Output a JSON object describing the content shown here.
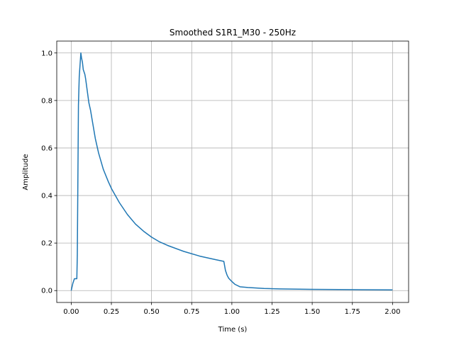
{
  "chart_data": {
    "type": "line",
    "title": "Smoothed S1R1_M30 - 250Hz",
    "xlabel": "Time (s)",
    "ylabel": "Amplitude",
    "xlim": [
      -0.09,
      2.1
    ],
    "ylim": [
      -0.05,
      1.05
    ],
    "grid": true,
    "xticks": [
      0.0,
      0.25,
      0.5,
      0.75,
      1.0,
      1.25,
      1.5,
      1.75,
      2.0
    ],
    "xtick_labels": [
      "0.00",
      "0.25",
      "0.50",
      "0.75",
      "1.00",
      "1.25",
      "1.50",
      "1.75",
      "2.00"
    ],
    "yticks": [
      0.0,
      0.2,
      0.4,
      0.6,
      0.8,
      1.0
    ],
    "ytick_labels": [
      "0.0",
      "0.2",
      "0.4",
      "0.6",
      "0.8",
      "1.0"
    ],
    "series": [
      {
        "color": "#1f77b4",
        "x": [
          0.0,
          0.01,
          0.02,
          0.028,
          0.035,
          0.038,
          0.045,
          0.05,
          0.055,
          0.06,
          0.064,
          0.07,
          0.075,
          0.08,
          0.085,
          0.09,
          0.1,
          0.11,
          0.12,
          0.13,
          0.15,
          0.17,
          0.2,
          0.23,
          0.25,
          0.3,
          0.35,
          0.4,
          0.45,
          0.5,
          0.55,
          0.6,
          0.7,
          0.8,
          0.9,
          0.95,
          0.96,
          0.97,
          0.98,
          1.0,
          1.02,
          1.05,
          1.1,
          1.2,
          1.3,
          1.5,
          1.75,
          2.0
        ],
        "y": [
          0.0,
          0.03,
          0.05,
          0.05,
          0.05,
          0.15,
          0.78,
          0.9,
          0.95,
          1.0,
          0.98,
          0.96,
          0.93,
          0.92,
          0.91,
          0.89,
          0.84,
          0.79,
          0.76,
          0.72,
          0.64,
          0.58,
          0.51,
          0.46,
          0.43,
          0.37,
          0.32,
          0.28,
          0.25,
          0.225,
          0.205,
          0.19,
          0.165,
          0.145,
          0.13,
          0.123,
          0.085,
          0.065,
          0.052,
          0.038,
          0.026,
          0.016,
          0.013,
          0.009,
          0.007,
          0.005,
          0.004,
          0.003
        ]
      }
    ]
  }
}
